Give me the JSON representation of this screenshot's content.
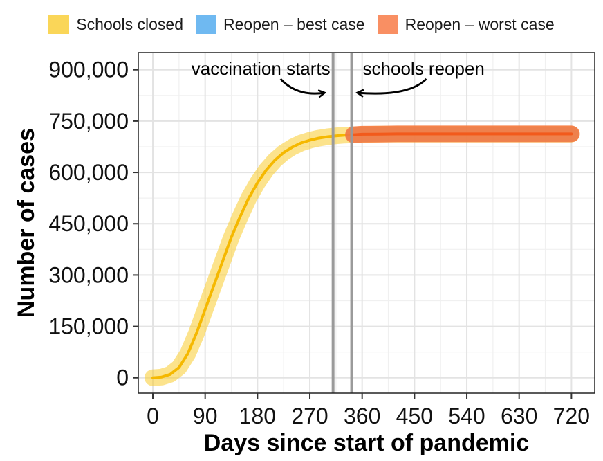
{
  "legend": {
    "items": [
      {
        "label": "Schools closed",
        "color": "#F9CC2E"
      },
      {
        "label": "Reopen – best case",
        "color": "#4BA8EE"
      },
      {
        "label": "Reopen – worst case",
        "color": "#F7733C"
      }
    ]
  },
  "chart_data": {
    "type": "line",
    "xlabel": "Days since start of pandemic",
    "ylabel": "Number of cases",
    "xlim": [
      -25,
      760
    ],
    "ylim": [
      -45000,
      950000
    ],
    "x_ticks": [
      0,
      90,
      180,
      270,
      360,
      450,
      540,
      630,
      720
    ],
    "x_tick_labels": [
      "0",
      "90",
      "180",
      "270",
      "360",
      "450",
      "540",
      "630",
      "720"
    ],
    "y_ticks": [
      0,
      150000,
      300000,
      450000,
      600000,
      750000,
      900000
    ],
    "y_tick_labels": [
      "0",
      "150,000",
      "300,000",
      "450,000",
      "600,000",
      "750,000",
      "900,000"
    ],
    "grid": true,
    "legend_position": "top",
    "series": [
      {
        "name": "Schools closed",
        "color": "#F9CC2E",
        "line_color": "#F5B800",
        "x": [
          0,
          15,
          30,
          45,
          60,
          75,
          90,
          105,
          120,
          135,
          150,
          165,
          180,
          195,
          210,
          225,
          240,
          255,
          270,
          285,
          300,
          315,
          330,
          345,
          360,
          390,
          420,
          450,
          480,
          510,
          540,
          570,
          600,
          630,
          660,
          690,
          720
        ],
        "y": [
          0,
          2000,
          10000,
          30000,
          70000,
          130000,
          200000,
          270000,
          340000,
          410000,
          470000,
          525000,
          570000,
          607000,
          636000,
          658000,
          674000,
          686000,
          694000,
          700000,
          704000,
          707000,
          709000,
          710000,
          711000,
          712000,
          712000,
          712000,
          712000,
          712000,
          712000,
          712000,
          712000,
          712000,
          712000,
          712000,
          712000
        ]
      },
      {
        "name": "Reopen – best case",
        "color": "#4BA8EE",
        "x": [
          345,
          360,
          390,
          420,
          450,
          480,
          510,
          540,
          570,
          600,
          630,
          660,
          690,
          720
        ],
        "y": [
          710000,
          711000,
          711500,
          712000,
          712000,
          712000,
          712000,
          712000,
          712000,
          712000,
          712000,
          712000,
          712000,
          712000
        ]
      },
      {
        "name": "Reopen – worst case",
        "color": "#F7733C",
        "line_color": "#F25A1C",
        "x": [
          345,
          360,
          390,
          420,
          450,
          480,
          510,
          540,
          570,
          600,
          630,
          660,
          690,
          720
        ],
        "y": [
          710000,
          711500,
          712000,
          712500,
          712500,
          712500,
          712500,
          712500,
          712500,
          712500,
          712500,
          712500,
          712500,
          712500
        ]
      }
    ],
    "vlines": [
      {
        "x": 310,
        "label": "vaccination starts"
      },
      {
        "x": 342,
        "label": "schools reopen"
      }
    ]
  }
}
